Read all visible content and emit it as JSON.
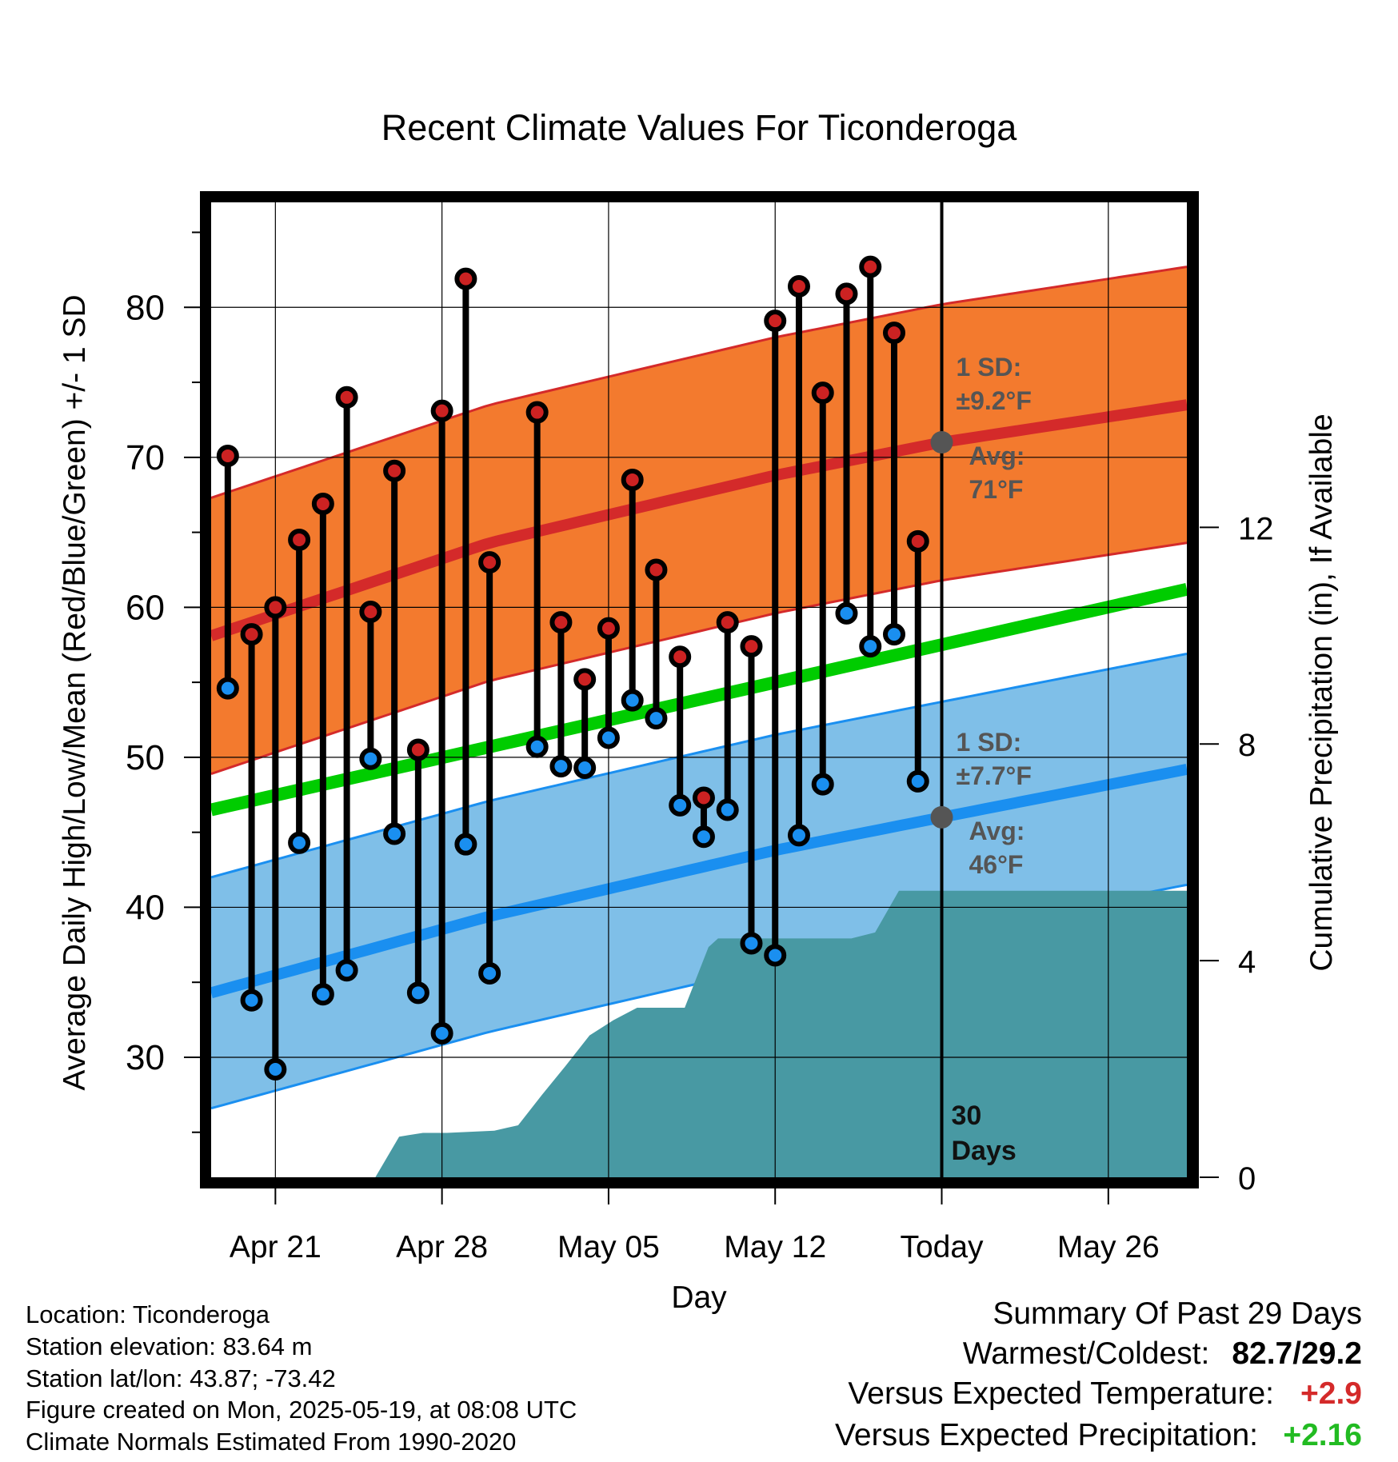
{
  "chart_data": {
    "type": "line",
    "title": "Recent Climate Values For Ticonderoga",
    "xlabel": "Day",
    "ylabel": "Average Daily High/Low/Mean (Red/Blue/Green) +/- 1 SD",
    "y2label": "Cumulative Precipitation (in), If Available",
    "ylim": [
      22,
      87
    ],
    "y2lim": [
      0,
      18
    ],
    "xlim": [
      -2.7,
      38.3
    ],
    "x_tick_labels": [
      {
        "day": 0,
        "label": "Apr 21"
      },
      {
        "day": 7,
        "label": "Apr 28"
      },
      {
        "day": 14,
        "label": "May 05"
      },
      {
        "day": 21,
        "label": "May 12"
      },
      {
        "day": 28,
        "label": "Today"
      },
      {
        "day": 35,
        "label": "May 26"
      }
    ],
    "y_ticks": [
      30,
      40,
      50,
      60,
      70,
      80
    ],
    "y2_ticks": [
      0,
      4,
      8,
      12
    ],
    "today_label": [
      "30",
      "Days"
    ],
    "observed": {
      "days": [
        -2,
        -1,
        0,
        1,
        2,
        3,
        4,
        5,
        6,
        7,
        8,
        9,
        11,
        12,
        13,
        14,
        15,
        16,
        17,
        18,
        19,
        20,
        21,
        22,
        23,
        24,
        25,
        26,
        27
      ],
      "high": [
        70.1,
        58.2,
        60.0,
        64.5,
        66.9,
        74.0,
        59.7,
        69.1,
        50.5,
        73.1,
        81.9,
        63.0,
        73.0,
        59.0,
        55.2,
        58.6,
        68.5,
        62.5,
        56.7,
        47.3,
        59.0,
        57.4,
        79.1,
        81.4,
        74.3,
        80.9,
        82.7,
        78.3,
        64.4
      ],
      "low": [
        54.6,
        33.8,
        29.2,
        44.3,
        34.2,
        35.8,
        49.9,
        44.9,
        34.3,
        31.6,
        44.2,
        35.6,
        50.7,
        49.4,
        49.3,
        51.3,
        53.8,
        52.6,
        46.8,
        44.7,
        46.5,
        37.6,
        36.8,
        44.8,
        48.2,
        59.6,
        57.4,
        58.2,
        48.4
      ]
    },
    "normal_high": {
      "days": [
        -2.7,
        9,
        21,
        28,
        38.3
      ],
      "avg": [
        58.1,
        64.3,
        68.8,
        71.0,
        73.5
      ],
      "sd_label": "±9.2°F",
      "avg_label": "71°F"
    },
    "normal_low": {
      "days": [
        -2.7,
        9,
        21,
        28,
        38.3
      ],
      "avg": [
        34.3,
        39.4,
        43.8,
        46.0,
        49.2
      ],
      "sd_label": "±7.7°F",
      "avg_label": "46°F"
    },
    "normal_mean": {
      "days": [
        -2.7,
        38.3
      ],
      "values": [
        46.5,
        61.2
      ]
    },
    "sd_high": 9.2,
    "sd_low": 7.7,
    "sd_text": "1 SD:",
    "avg_text": "Avg:",
    "precip": {
      "days": [
        4.2,
        5.2,
        6.2,
        7.2,
        9.2,
        10.2,
        11.2,
        12.2,
        13.2,
        14.2,
        15.2,
        16.2,
        17.2,
        18.2,
        18.6,
        19.2,
        21.2,
        22.2,
        23.2,
        24.2,
        25.2,
        26.2,
        27.2,
        38.3
      ],
      "values": [
        0,
        0.75,
        0.82,
        0.82,
        0.86,
        0.96,
        1.52,
        2.06,
        2.62,
        2.9,
        3.13,
        3.13,
        3.13,
        4.25,
        4.41,
        4.41,
        4.41,
        4.41,
        4.41,
        4.41,
        4.52,
        5.29,
        5.29,
        5.29
      ]
    },
    "colors": {
      "high_band": "#f37a2e",
      "high_line": "#d42a2a",
      "low_band": "#7fbfe8",
      "low_line": "#1a8ff0",
      "mean_line": "#00cc00",
      "precip": "#4899a3",
      "high_dot": "#cc2222",
      "low_dot": "#1a8ff0"
    }
  },
  "info": {
    "location": "Location: Ticonderoga",
    "elevation": "Station elevation: 83.64 m",
    "latlon": "Station lat/lon: 43.87; -73.42",
    "created": "Figure created on Mon, 2025-05-19, at 08:08 UTC",
    "normals": "Climate Normals Estimated From 1990-2020"
  },
  "summary": {
    "heading": "Summary Of Past 29 Days",
    "warmest_label": "Warmest/Coldest:",
    "warmest_value": "82.7/29.2",
    "temp_label": "Versus Expected Temperature:",
    "temp_value": "+2.9",
    "precip_label": "Versus Expected Precipitation:",
    "precip_value": "+2.16"
  }
}
